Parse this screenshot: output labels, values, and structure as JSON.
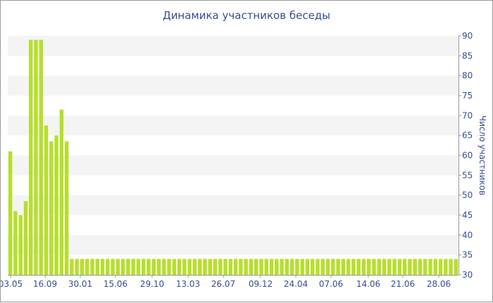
{
  "chart_data": {
    "type": "bar",
    "title": "Динамика участников беседы",
    "ylabel": "Число участников",
    "ylim": [
      30,
      90
    ],
    "y_ticks": [
      30,
      35,
      40,
      45,
      50,
      55,
      60,
      65,
      70,
      75,
      80,
      85,
      90
    ],
    "x_tick_labels": [
      "03.05",
      "16.09",
      "30.01",
      "15.06",
      "29.10",
      "13.03",
      "26.07",
      "09.12",
      "24.04",
      "07.06",
      "14.06",
      "21.06",
      "28.06"
    ],
    "bar_color": "#b7df2c",
    "y_axis_side": "right",
    "grid": "alternating horizontal bands",
    "values": [
      61,
      46,
      45,
      48.5,
      89,
      89,
      89,
      67.5,
      63.5,
      65,
      71.5,
      63.5,
      34,
      34,
      34,
      34,
      34,
      34,
      34,
      34,
      34,
      34,
      34,
      34,
      34,
      34,
      34,
      34,
      34,
      34,
      34,
      34,
      34,
      34,
      34,
      34,
      34,
      34,
      34,
      34,
      34,
      34,
      34,
      34,
      34,
      34,
      34,
      34,
      34,
      34,
      34,
      34,
      34,
      34,
      34,
      34,
      34,
      34,
      34,
      34,
      34,
      34,
      34,
      34,
      34,
      34,
      34,
      34,
      34,
      34,
      34,
      34,
      34,
      34,
      34,
      34,
      34,
      34,
      34,
      34,
      34,
      34,
      34,
      34,
      34,
      34,
      34,
      34
    ]
  }
}
